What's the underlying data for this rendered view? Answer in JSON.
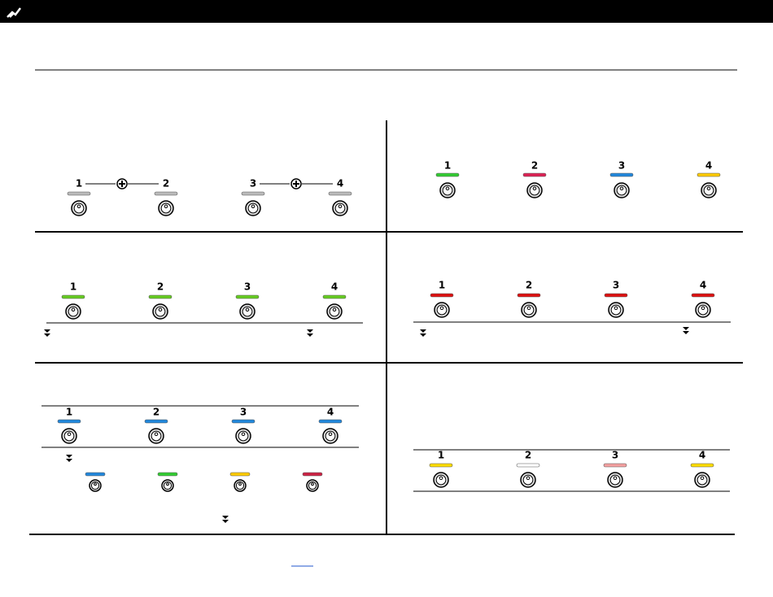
{
  "panels": [
    {
      "labels": [
        "1",
        "2",
        "3",
        "4"
      ],
      "leds": [
        "#bbbbbb",
        "#bbbbbb",
        "#bbbbbb",
        "#bbbbbb"
      ]
    },
    {
      "labels": [
        "1",
        "2",
        "3",
        "4"
      ],
      "leds": [
        "#33cc33",
        "#dd2255",
        "#2288dd",
        "#ffcc00"
      ]
    },
    {
      "labels": [
        "1",
        "2",
        "3",
        "4"
      ],
      "leds": [
        "#66cc22",
        "#66cc22",
        "#66cc22",
        "#66cc22"
      ]
    },
    {
      "labels": [
        "1",
        "2",
        "3",
        "4"
      ],
      "leds": [
        "#dd1111",
        "#dd1111",
        "#dd1111",
        "#dd1111"
      ]
    },
    {
      "labels": [
        "1",
        "2",
        "3",
        "4"
      ],
      "leds": [
        "#2288dd",
        "#2288dd",
        "#2288dd",
        "#2288dd"
      ],
      "sub_leds": [
        "#2288dd",
        "#33cc33",
        "#ffcc00",
        "#cc2244"
      ]
    },
    {
      "labels": [
        "1",
        "2",
        "3",
        "4"
      ],
      "leds": [
        "#ffdd00",
        "#ffffff",
        "#f4a0a0",
        "#ffdd00"
      ]
    }
  ]
}
